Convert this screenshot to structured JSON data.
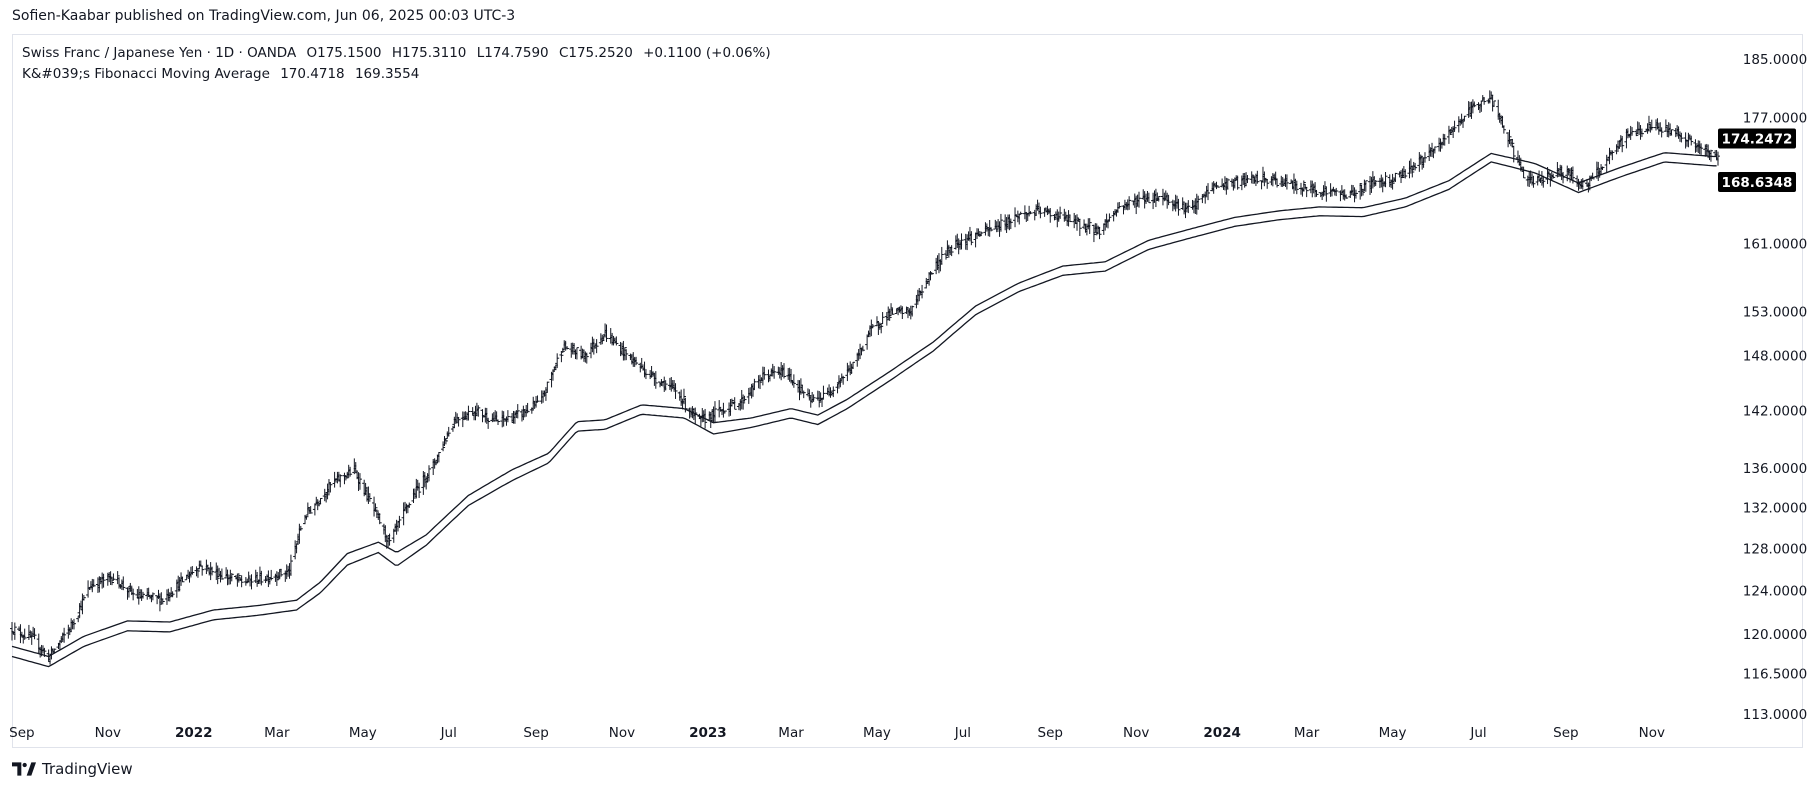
{
  "header": {
    "published": "Sofien-Kaabar published on TradingView.com, Jun 06, 2025 00:03 UTC-3"
  },
  "legend": {
    "symbol": "Swiss Franc / Japanese Yen · 1D · OANDA",
    "open": "O175.1500",
    "high": "H175.3110",
    "low": "L174.7590",
    "close": "C175.2520",
    "change": "+0.1100 (+0.06%)",
    "indicator_name": "K&#039;s Fibonacci Moving Average",
    "indicator_value_1": "170.4718",
    "indicator_value_2": "169.3554"
  },
  "footer": {
    "brand": "TradingView"
  },
  "chart_data": {
    "type": "line",
    "y_scale": "log",
    "ylim": [
      113.0,
      188.5
    ],
    "y_ticks": [
      "185.0000",
      "177.0000",
      "161.0000",
      "153.0000",
      "148.0000",
      "142.0000",
      "136.0000",
      "132.0000",
      "128.0000",
      "124.0000",
      "120.0000",
      "116.5000",
      "113.0000"
    ],
    "x_ticks": [
      {
        "label": "Sep",
        "date": "2021-09-01",
        "year": false
      },
      {
        "label": "Nov",
        "date": "2021-11-01",
        "year": false
      },
      {
        "label": "2022",
        "date": "2022-01-01",
        "year": true
      },
      {
        "label": "Mar",
        "date": "2022-03-01",
        "year": false
      },
      {
        "label": "May",
        "date": "2022-05-01",
        "year": false
      },
      {
        "label": "Jul",
        "date": "2022-07-01",
        "year": false
      },
      {
        "label": "Sep",
        "date": "2022-09-01",
        "year": false
      },
      {
        "label": "Nov",
        "date": "2022-11-01",
        "year": false
      },
      {
        "label": "2023",
        "date": "2023-01-01",
        "year": true
      },
      {
        "label": "Mar",
        "date": "2023-03-01",
        "year": false
      },
      {
        "label": "May",
        "date": "2023-05-01",
        "year": false
      },
      {
        "label": "Jul",
        "date": "2023-07-01",
        "year": false
      },
      {
        "label": "Sep",
        "date": "2023-09-01",
        "year": false
      },
      {
        "label": "Nov",
        "date": "2023-11-01",
        "year": false
      },
      {
        "label": "2024",
        "date": "2024-01-01",
        "year": true
      },
      {
        "label": "Mar",
        "date": "2024-03-01",
        "year": false
      },
      {
        "label": "May",
        "date": "2024-05-01",
        "year": false
      },
      {
        "label": "Jul",
        "date": "2024-07-01",
        "year": false
      },
      {
        "label": "Sep",
        "date": "2024-09-01",
        "year": false
      },
      {
        "label": "Nov",
        "date": "2024-11-01",
        "year": false
      }
    ],
    "x_range": [
      "2021-08-25",
      "2024-12-18"
    ],
    "price_path": [
      [
        "2021-08-25",
        120.5
      ],
      [
        "2021-09-10",
        119.5
      ],
      [
        "2021-09-20",
        117.9
      ],
      [
        "2021-10-05",
        120.5
      ],
      [
        "2021-10-20",
        124.5
      ],
      [
        "2021-11-05",
        125.3
      ],
      [
        "2021-11-20",
        123.5
      ],
      [
        "2021-12-10",
        123.2
      ],
      [
        "2022-01-05",
        126.4
      ],
      [
        "2022-01-20",
        125.5
      ],
      [
        "2022-02-05",
        124.8
      ],
      [
        "2022-02-20",
        125.2
      ],
      [
        "2022-03-10",
        125.8
      ],
      [
        "2022-03-20",
        131.0
      ],
      [
        "2022-04-10",
        134.5
      ],
      [
        "2022-04-25",
        135.8
      ],
      [
        "2022-05-10",
        131.5
      ],
      [
        "2022-05-20",
        128.5
      ],
      [
        "2022-06-05",
        133.0
      ],
      [
        "2022-06-20",
        136.2
      ],
      [
        "2022-07-05",
        141.0
      ],
      [
        "2022-07-20",
        142.0
      ],
      [
        "2022-08-05",
        140.8
      ],
      [
        "2022-08-20",
        141.5
      ],
      [
        "2022-09-05",
        143.0
      ],
      [
        "2022-09-20",
        149.0
      ],
      [
        "2022-10-05",
        148.0
      ],
      [
        "2022-10-20",
        150.5
      ],
      [
        "2022-11-05",
        148.0
      ],
      [
        "2022-11-20",
        146.0
      ],
      [
        "2022-12-10",
        144.0
      ],
      [
        "2022-12-25",
        140.8
      ],
      [
        "2023-01-10",
        142.0
      ],
      [
        "2023-01-25",
        143.0
      ],
      [
        "2023-02-10",
        145.8
      ],
      [
        "2023-02-25",
        146.2
      ],
      [
        "2023-03-15",
        143.0
      ],
      [
        "2023-03-25",
        143.5
      ],
      [
        "2023-04-15",
        147.0
      ],
      [
        "2023-04-25",
        150.5
      ],
      [
        "2023-05-10",
        152.8
      ],
      [
        "2023-05-25",
        153.0
      ],
      [
        "2023-06-10",
        158.0
      ],
      [
        "2023-06-25",
        161.0
      ],
      [
        "2023-07-10",
        162.0
      ],
      [
        "2023-07-25",
        163.0
      ],
      [
        "2023-08-10",
        164.5
      ],
      [
        "2023-08-25",
        165.0
      ],
      [
        "2023-09-10",
        164.2
      ],
      [
        "2023-10-05",
        162.5
      ],
      [
        "2023-10-20",
        165.5
      ],
      [
        "2023-11-05",
        166.5
      ],
      [
        "2023-11-20",
        166.8
      ],
      [
        "2023-12-10",
        165.0
      ],
      [
        "2023-12-25",
        168.0
      ],
      [
        "2024-01-10",
        168.5
      ],
      [
        "2024-01-25",
        169.0
      ],
      [
        "2024-02-10",
        168.8
      ],
      [
        "2024-02-25",
        168.0
      ],
      [
        "2024-03-15",
        167.5
      ],
      [
        "2024-04-01",
        167.0
      ],
      [
        "2024-04-15",
        168.5
      ],
      [
        "2024-05-01",
        169.0
      ],
      [
        "2024-05-15",
        170.5
      ],
      [
        "2024-06-01",
        172.8
      ],
      [
        "2024-06-15",
        176.0
      ],
      [
        "2024-07-01",
        179.0
      ],
      [
        "2024-07-10",
        179.5
      ],
      [
        "2024-07-25",
        173.0
      ],
      [
        "2024-08-05",
        168.5
      ],
      [
        "2024-08-20",
        169.5
      ],
      [
        "2024-09-01",
        170.0
      ],
      [
        "2024-09-15",
        168.0
      ],
      [
        "2024-10-01",
        171.5
      ],
      [
        "2024-10-15",
        174.8
      ],
      [
        "2024-11-01",
        175.8
      ],
      [
        "2024-11-20",
        175.0
      ],
      [
        "2024-12-05",
        173.0
      ],
      [
        "2024-12-15",
        172.0
      ]
    ],
    "fma_upper": [
      [
        "2021-08-25",
        118.9
      ],
      [
        "2021-09-20",
        118.0
      ],
      [
        "2021-10-15",
        119.8
      ],
      [
        "2021-11-15",
        121.2
      ],
      [
        "2021-12-15",
        121.1
      ],
      [
        "2022-01-15",
        122.2
      ],
      [
        "2022-02-15",
        122.6
      ],
      [
        "2022-03-15",
        123.1
      ],
      [
        "2022-04-01",
        124.8
      ],
      [
        "2022-04-20",
        127.5
      ],
      [
        "2022-05-12",
        128.6
      ],
      [
        "2022-05-25",
        127.6
      ],
      [
        "2022-06-15",
        129.3
      ],
      [
        "2022-07-15",
        133.2
      ],
      [
        "2022-08-15",
        135.8
      ],
      [
        "2022-09-10",
        137.5
      ],
      [
        "2022-09-30",
        140.8
      ],
      [
        "2022-10-20",
        141.0
      ],
      [
        "2022-11-15",
        142.6
      ],
      [
        "2022-12-15",
        142.2
      ],
      [
        "2023-01-05",
        140.7
      ],
      [
        "2023-02-01",
        141.2
      ],
      [
        "2023-03-01",
        142.2
      ],
      [
        "2023-03-20",
        141.5
      ],
      [
        "2023-04-10",
        143.2
      ],
      [
        "2023-05-10",
        146.2
      ],
      [
        "2023-06-10",
        149.5
      ],
      [
        "2023-07-10",
        153.6
      ],
      [
        "2023-08-10",
        156.3
      ],
      [
        "2023-09-10",
        158.3
      ],
      [
        "2023-10-10",
        158.8
      ],
      [
        "2023-11-10",
        161.4
      ],
      [
        "2023-12-10",
        162.8
      ],
      [
        "2024-01-10",
        164.2
      ],
      [
        "2024-02-10",
        165.0
      ],
      [
        "2024-03-10",
        165.5
      ],
      [
        "2024-04-10",
        165.4
      ],
      [
        "2024-05-10",
        166.6
      ],
      [
        "2024-06-10",
        168.8
      ],
      [
        "2024-07-10",
        172.3
      ],
      [
        "2024-08-10",
        171.0
      ],
      [
        "2024-09-10",
        168.5
      ],
      [
        "2024-10-10",
        170.5
      ],
      [
        "2024-11-10",
        172.4
      ],
      [
        "2024-12-15",
        171.9
      ]
    ],
    "fma_lower": [
      [
        "2021-08-25",
        118.0
      ],
      [
        "2021-09-20",
        117.1
      ],
      [
        "2021-10-15",
        118.9
      ],
      [
        "2021-11-15",
        120.3
      ],
      [
        "2021-12-15",
        120.2
      ],
      [
        "2022-01-15",
        121.3
      ],
      [
        "2022-02-15",
        121.7
      ],
      [
        "2022-03-15",
        122.2
      ],
      [
        "2022-04-01",
        123.8
      ],
      [
        "2022-04-20",
        126.4
      ],
      [
        "2022-05-12",
        127.6
      ],
      [
        "2022-05-25",
        126.3
      ],
      [
        "2022-06-15",
        128.3
      ],
      [
        "2022-07-15",
        132.2
      ],
      [
        "2022-08-15",
        134.7
      ],
      [
        "2022-09-10",
        136.5
      ],
      [
        "2022-09-30",
        139.8
      ],
      [
        "2022-10-20",
        140.0
      ],
      [
        "2022-11-15",
        141.6
      ],
      [
        "2022-12-15",
        141.2
      ],
      [
        "2023-01-05",
        139.5
      ],
      [
        "2023-02-01",
        140.2
      ],
      [
        "2023-03-01",
        141.2
      ],
      [
        "2023-03-20",
        140.5
      ],
      [
        "2023-04-10",
        142.2
      ],
      [
        "2023-05-10",
        145.2
      ],
      [
        "2023-06-10",
        148.5
      ],
      [
        "2023-07-10",
        152.6
      ],
      [
        "2023-08-10",
        155.3
      ],
      [
        "2023-09-10",
        157.2
      ],
      [
        "2023-10-10",
        157.7
      ],
      [
        "2023-11-10",
        160.3
      ],
      [
        "2023-12-10",
        161.7
      ],
      [
        "2024-01-10",
        163.1
      ],
      [
        "2024-02-10",
        163.9
      ],
      [
        "2024-03-10",
        164.4
      ],
      [
        "2024-04-10",
        164.3
      ],
      [
        "2024-05-10",
        165.5
      ],
      [
        "2024-06-10",
        167.7
      ],
      [
        "2024-07-10",
        171.2
      ],
      [
        "2024-08-10",
        169.8
      ],
      [
        "2024-09-10",
        167.3
      ],
      [
        "2024-10-10",
        169.3
      ],
      [
        "2024-11-10",
        171.2
      ],
      [
        "2024-12-15",
        170.7
      ]
    ],
    "last_price_label": "174.2472",
    "last_price_value": 174.2472,
    "fma_label": "168.6348",
    "fma_value": 168.6348,
    "colors": {
      "bars": "#131722",
      "lines": "#131722",
      "badge_bg": "#000000",
      "badge_text": "#ffffff",
      "border": "#e0e3eb"
    }
  }
}
